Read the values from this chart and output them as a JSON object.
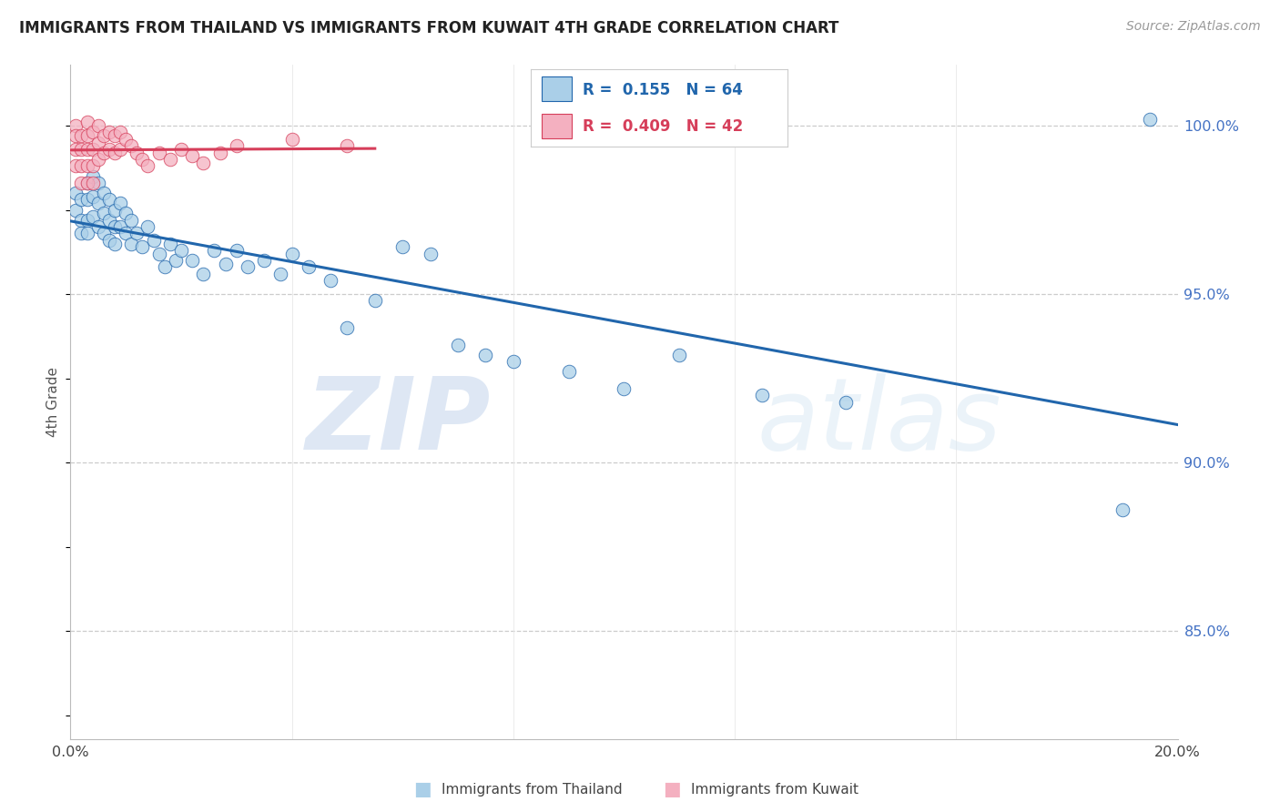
{
  "title": "IMMIGRANTS FROM THAILAND VS IMMIGRANTS FROM KUWAIT 4TH GRADE CORRELATION CHART",
  "source": "Source: ZipAtlas.com",
  "xlabel_blue": "Immigrants from Thailand",
  "xlabel_pink": "Immigrants from Kuwait",
  "ylabel": "4th Grade",
  "xmin": 0.0,
  "xmax": 0.2,
  "ymin": 0.818,
  "ymax": 1.018,
  "yticks": [
    0.85,
    0.9,
    0.95,
    1.0
  ],
  "ytick_labels": [
    "85.0%",
    "90.0%",
    "95.0%",
    "100.0%"
  ],
  "xticks": [
    0.0,
    0.04,
    0.08,
    0.12,
    0.16,
    0.2
  ],
  "blue_color": "#aacfe8",
  "pink_color": "#f4b0c0",
  "trend_blue": "#2166ac",
  "trend_pink": "#d63e5a",
  "watermark_zip": "ZIP",
  "watermark_atlas": "atlas",
  "blue_x": [
    0.001,
    0.001,
    0.002,
    0.002,
    0.002,
    0.003,
    0.003,
    0.003,
    0.003,
    0.004,
    0.004,
    0.004,
    0.005,
    0.005,
    0.005,
    0.006,
    0.006,
    0.006,
    0.007,
    0.007,
    0.007,
    0.008,
    0.008,
    0.008,
    0.009,
    0.009,
    0.01,
    0.01,
    0.011,
    0.011,
    0.012,
    0.013,
    0.014,
    0.015,
    0.016,
    0.017,
    0.018,
    0.019,
    0.02,
    0.022,
    0.024,
    0.026,
    0.028,
    0.03,
    0.032,
    0.035,
    0.038,
    0.04,
    0.043,
    0.047,
    0.05,
    0.055,
    0.06,
    0.065,
    0.07,
    0.075,
    0.08,
    0.09,
    0.1,
    0.11,
    0.125,
    0.14,
    0.19,
    0.195
  ],
  "blue_y": [
    0.98,
    0.975,
    0.978,
    0.972,
    0.968,
    0.983,
    0.978,
    0.972,
    0.968,
    0.985,
    0.979,
    0.973,
    0.983,
    0.977,
    0.97,
    0.98,
    0.974,
    0.968,
    0.978,
    0.972,
    0.966,
    0.975,
    0.97,
    0.965,
    0.977,
    0.97,
    0.974,
    0.968,
    0.972,
    0.965,
    0.968,
    0.964,
    0.97,
    0.966,
    0.962,
    0.958,
    0.965,
    0.96,
    0.963,
    0.96,
    0.956,
    0.963,
    0.959,
    0.963,
    0.958,
    0.96,
    0.956,
    0.962,
    0.958,
    0.954,
    0.94,
    0.948,
    0.964,
    0.962,
    0.935,
    0.932,
    0.93,
    0.927,
    0.922,
    0.932,
    0.92,
    0.918,
    0.886,
    1.002
  ],
  "pink_x": [
    0.001,
    0.001,
    0.001,
    0.001,
    0.002,
    0.002,
    0.002,
    0.002,
    0.003,
    0.003,
    0.003,
    0.003,
    0.003,
    0.004,
    0.004,
    0.004,
    0.004,
    0.005,
    0.005,
    0.005,
    0.006,
    0.006,
    0.007,
    0.007,
    0.008,
    0.008,
    0.009,
    0.009,
    0.01,
    0.011,
    0.012,
    0.013,
    0.014,
    0.016,
    0.018,
    0.02,
    0.022,
    0.024,
    0.027,
    0.03,
    0.04,
    0.05
  ],
  "pink_y": [
    1.0,
    0.997,
    0.993,
    0.988,
    0.997,
    0.993,
    0.988,
    0.983,
    1.001,
    0.997,
    0.993,
    0.988,
    0.983,
    0.998,
    0.993,
    0.988,
    0.983,
    1.0,
    0.995,
    0.99,
    0.997,
    0.992,
    0.998,
    0.993,
    0.997,
    0.992,
    0.998,
    0.993,
    0.996,
    0.994,
    0.992,
    0.99,
    0.988,
    0.992,
    0.99,
    0.993,
    0.991,
    0.989,
    0.992,
    0.994,
    0.996,
    0.994
  ]
}
